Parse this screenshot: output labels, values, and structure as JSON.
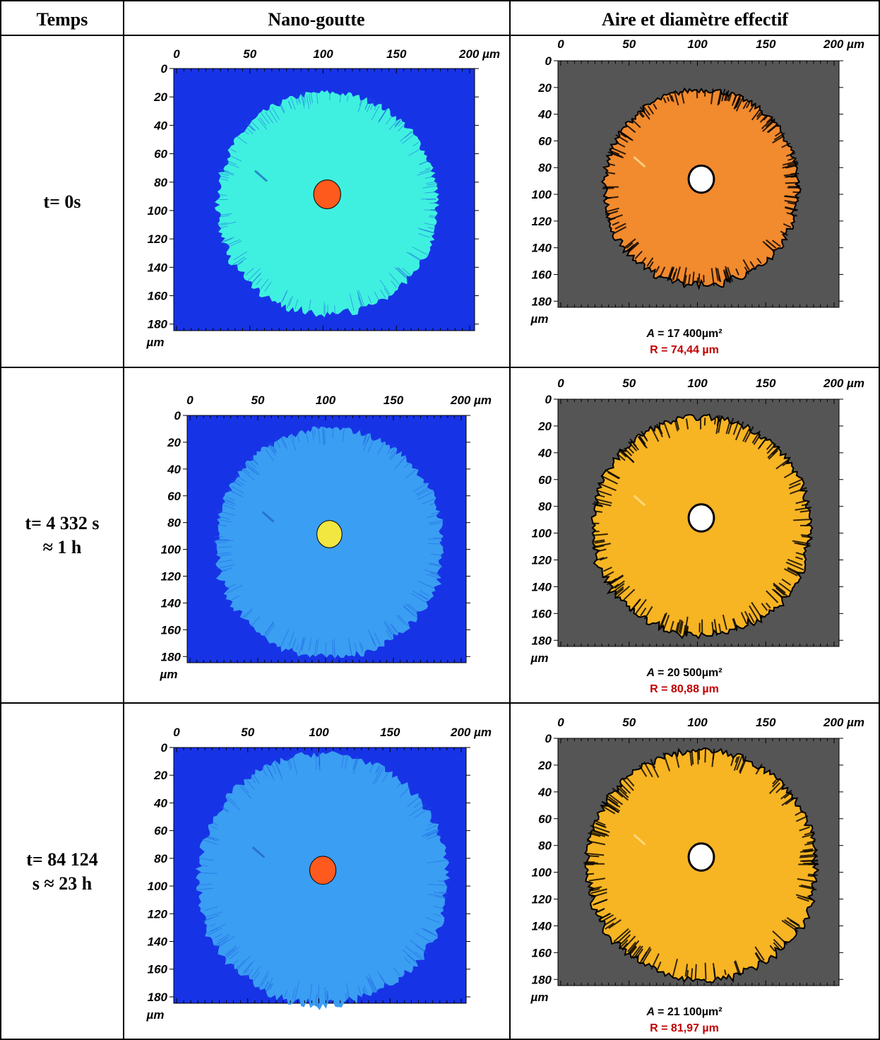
{
  "table": {
    "header": [
      "Temps",
      "Nano-goutte",
      "Aire et diamètre effectif"
    ],
    "axes": {
      "x_ticks": [
        "0",
        "50",
        "100",
        "150",
        "200 µm"
      ],
      "y_ticks": [
        "0",
        "20",
        "40",
        "60",
        "80",
        "100",
        "120",
        "140",
        "160",
        "180"
      ],
      "y_unit": "µm"
    },
    "rows": [
      {
        "time": [
          "t= 0s"
        ],
        "area_symbol": "A",
        "area": "=  17 400µm²",
        "radius": "R = 74,44 µm"
      },
      {
        "time": [
          "t= 4 332 s",
          "≈ 1 h"
        ],
        "area_symbol": "A",
        "area": "=  20 500µm²",
        "radius": "R = 80,88 µm"
      },
      {
        "time": [
          "t= 84 124",
          "s ≈ 23 h"
        ],
        "area_symbol": "A",
        "area": "=  21 100µm²",
        "radius": "R = 81,97 µm"
      }
    ]
  }
}
